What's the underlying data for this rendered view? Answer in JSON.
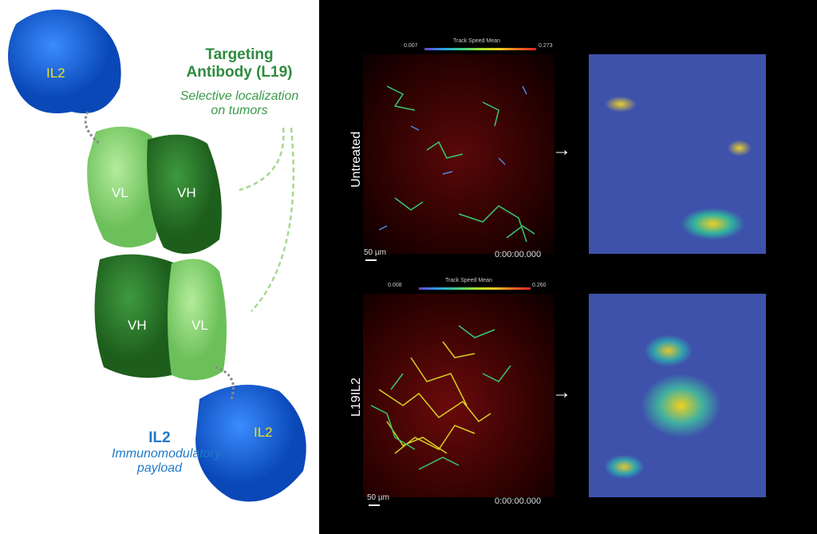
{
  "left_panel": {
    "title": "Targeting Antibody (L19)",
    "title_line1": "Targeting",
    "title_line2": "Antibody (L19)",
    "subtitle_line1": "Selective localization",
    "subtitle_line2": "on tumors",
    "il2_top_label": "IL2",
    "il2_bottom_label": "IL2",
    "domain_labels": [
      "VL",
      "VH",
      "VH",
      "VL"
    ],
    "payload_title": "IL2",
    "payload_line1": "Immunomodulatory",
    "payload_line2": "payload",
    "colors": {
      "il2": "#1565d8",
      "dark_green": "#2e7d32",
      "light_green": "#8fd680"
    }
  },
  "right_panel": {
    "rows": [
      {
        "label": "Untreated",
        "colorbar_title": "Track Speed Mean",
        "colorbar_min": "0.007",
        "colorbar_max": "0.273",
        "scale": "50 µm",
        "time": "0:00:00.000"
      },
      {
        "label": "L19IL2",
        "colorbar_title": "Track Speed Mean",
        "colorbar_min": "0.008",
        "colorbar_max": "0.260",
        "scale": "50 µm",
        "time": "0:00:00.000"
      }
    ],
    "arrow_icon": "right-arrow-icon"
  }
}
